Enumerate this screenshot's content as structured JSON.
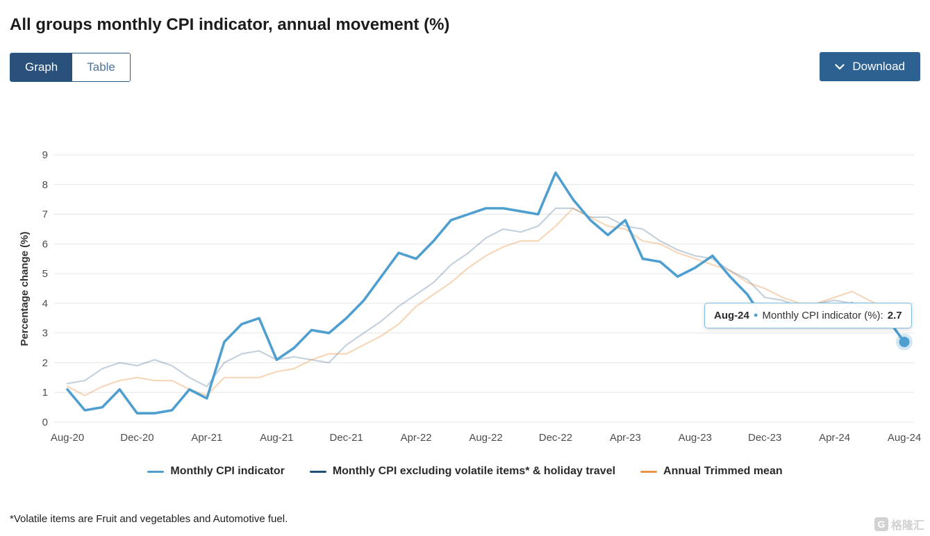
{
  "page": {
    "title": "All groups monthly CPI indicator, annual movement (%)"
  },
  "toolbar": {
    "graph_label": "Graph",
    "table_label": "Table",
    "download_label": "Download"
  },
  "tooltip": {
    "date": "Aug-24",
    "series_label": "Monthly CPI indicator (%):",
    "value": "2.7"
  },
  "footnote": "*Volatile items are Fruit and vegetables and Automotive fuel.",
  "watermark": "格隆汇",
  "colors": {
    "accent_dark_blue": "#29517c",
    "download_blue": "#2d6191",
    "grid_gray": "#e6e6e6",
    "tooltip_border": "#7fbbdd"
  },
  "chart_data": {
    "type": "line",
    "title": "All groups monthly CPI indicator, annual movement (%)",
    "xlabel": "",
    "ylabel": "Percentage change (%)",
    "ylim": [
      0,
      9
    ],
    "y_ticks": [
      0,
      1,
      2,
      3,
      4,
      5,
      6,
      7,
      8,
      9
    ],
    "grid": "horizontal",
    "legend_position": "bottom",
    "x": [
      "Aug-20",
      "Sep-20",
      "Oct-20",
      "Nov-20",
      "Dec-20",
      "Jan-21",
      "Feb-21",
      "Mar-21",
      "Apr-21",
      "May-21",
      "Jun-21",
      "Jul-21",
      "Aug-21",
      "Sep-21",
      "Oct-21",
      "Nov-21",
      "Dec-21",
      "Jan-22",
      "Feb-22",
      "Mar-22",
      "Apr-22",
      "May-22",
      "Jun-22",
      "Jul-22",
      "Aug-22",
      "Sep-22",
      "Oct-22",
      "Nov-22",
      "Dec-22",
      "Jan-23",
      "Feb-23",
      "Mar-23",
      "Apr-23",
      "May-23",
      "Jun-23",
      "Jul-23",
      "Aug-23",
      "Sep-23",
      "Oct-23",
      "Nov-23",
      "Dec-23",
      "Jan-24",
      "Feb-24",
      "Mar-24",
      "Apr-24",
      "May-24",
      "Jun-24",
      "Jul-24",
      "Aug-24"
    ],
    "x_tick_labels": [
      "Aug-20",
      "Dec-20",
      "Apr-21",
      "Aug-21",
      "Dec-21",
      "Apr-22",
      "Aug-22",
      "Dec-22",
      "Apr-23",
      "Aug-23",
      "Dec-23",
      "Apr-24",
      "Aug-24"
    ],
    "hovered_point": {
      "series": "Monthly CPI indicator",
      "x": "Aug-24",
      "y": 2.7
    },
    "series": [
      {
        "name": "Monthly CPI indicator",
        "color": "#4e9fcf",
        "highlighted": true,
        "values": [
          1.1,
          0.4,
          0.5,
          1.1,
          0.3,
          0.3,
          0.4,
          1.1,
          0.8,
          2.7,
          3.3,
          3.5,
          2.1,
          2.5,
          3.1,
          3.0,
          3.5,
          4.1,
          4.9,
          5.7,
          5.5,
          6.1,
          6.8,
          7.0,
          7.2,
          7.2,
          7.1,
          7.0,
          8.4,
          7.5,
          6.8,
          6.3,
          6.8,
          5.5,
          5.4,
          4.9,
          5.2,
          5.6,
          4.9,
          4.3,
          3.4,
          3.4,
          3.4,
          3.5,
          3.6,
          4.0,
          3.8,
          3.5,
          2.7
        ]
      },
      {
        "name": "Monthly CPI excluding volatile items* & holiday travel",
        "color": "#1f4e79",
        "highlighted": false,
        "values": [
          1.3,
          1.4,
          1.8,
          2.0,
          1.9,
          2.1,
          1.9,
          1.5,
          1.2,
          2.0,
          2.3,
          2.4,
          2.1,
          2.2,
          2.1,
          2.0,
          2.6,
          3.0,
          3.4,
          3.9,
          4.3,
          4.7,
          5.3,
          5.7,
          6.2,
          6.5,
          6.4,
          6.6,
          7.2,
          7.2,
          6.9,
          6.9,
          6.6,
          6.5,
          6.1,
          5.8,
          5.6,
          5.5,
          5.1,
          4.8,
          4.2,
          4.1,
          3.9,
          4.0,
          4.1,
          4.0,
          4.0,
          3.7,
          3.4
        ]
      },
      {
        "name": "Annual Trimmed mean",
        "color": "#e8954a",
        "highlighted": false,
        "values": [
          1.2,
          0.9,
          1.2,
          1.4,
          1.5,
          1.4,
          1.4,
          1.1,
          0.9,
          1.5,
          1.5,
          1.5,
          1.7,
          1.8,
          2.1,
          2.3,
          2.3,
          2.6,
          2.9,
          3.3,
          3.9,
          4.3,
          4.7,
          5.2,
          5.6,
          5.9,
          6.1,
          6.1,
          6.6,
          7.2,
          6.9,
          6.6,
          6.5,
          6.1,
          6.0,
          5.7,
          5.5,
          5.3,
          5.1,
          4.7,
          4.5,
          4.2,
          4.0,
          4.0,
          4.2,
          4.4,
          4.1,
          3.8,
          3.4
        ]
      }
    ]
  }
}
